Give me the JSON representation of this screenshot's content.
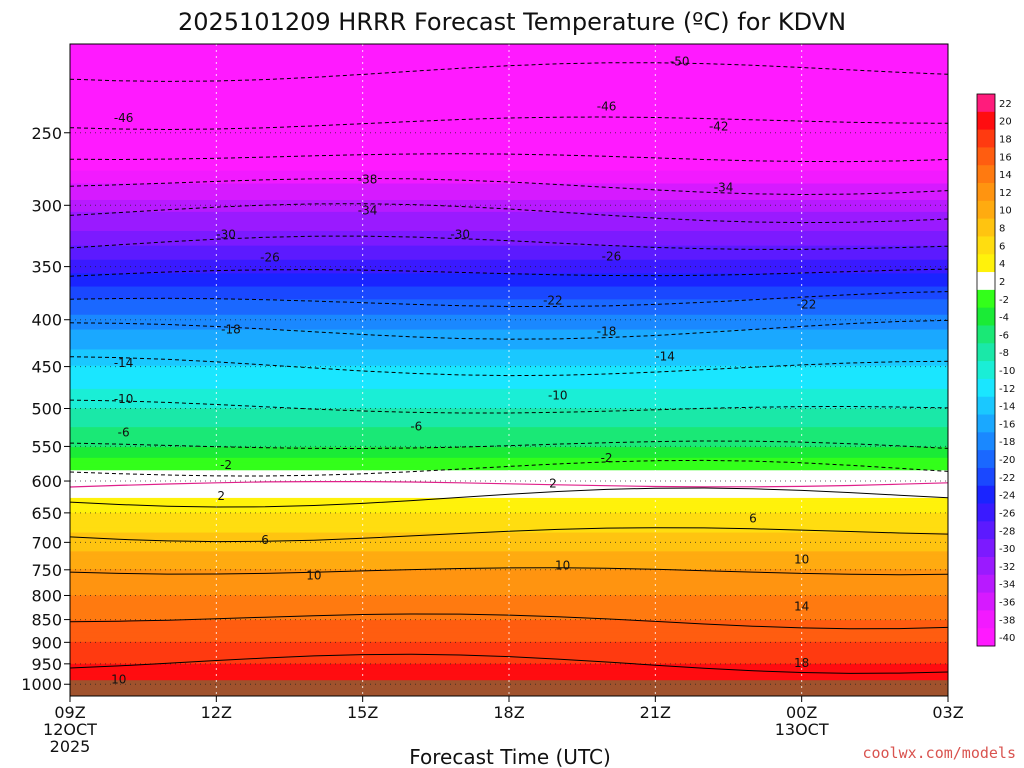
{
  "chart_data": {
    "type": "heatmap",
    "title": "2025101209 HRRR Forecast Temperature (ºC) for KDVN",
    "xlabel": "Forecast Time (UTC)",
    "ylabel": "",
    "x_ticks": [
      {
        "hour": 0,
        "lines": [
          "09Z",
          "12OCT",
          "2025"
        ]
      },
      {
        "hour": 3,
        "lines": [
          "12Z"
        ]
      },
      {
        "hour": 6,
        "lines": [
          "15Z"
        ]
      },
      {
        "hour": 9,
        "lines": [
          "18Z"
        ]
      },
      {
        "hour": 12,
        "lines": [
          "21Z"
        ]
      },
      {
        "hour": 15,
        "lines": [
          "00Z",
          "13OCT"
        ]
      },
      {
        "hour": 18,
        "lines": [
          "03Z"
        ]
      }
    ],
    "y_ticks": [
      250,
      300,
      350,
      400,
      450,
      500,
      550,
      600,
      650,
      700,
      750,
      800,
      850,
      900,
      950,
      1000
    ],
    "y_range_hpa": [
      200,
      1030
    ],
    "surface_pressure_hpa": 990,
    "colorbar": {
      "labels": [
        "22",
        "20",
        "18",
        "16",
        "14",
        "12",
        "10",
        "8",
        "6",
        "4",
        "2",
        "-2",
        "-4",
        "-6",
        "-8",
        "-10",
        "-12",
        "-14",
        "-16",
        "-18",
        "-20",
        "-22",
        "-24",
        "-26",
        "-28",
        "-30",
        "-32",
        "-34",
        "-36",
        "-38",
        "-40"
      ],
      "colors": [
        "#ff1c7c",
        "#ff0d10",
        "#ff3a10",
        "#ff5d10",
        "#ff7a10",
        "#ff9410",
        "#ffab10",
        "#ffc410",
        "#ffdd10",
        "#fff20b",
        "#ffffff",
        "#33ff1a",
        "#1aeb36",
        "#1ae876",
        "#1ae8a8",
        "#1aeed6",
        "#1ae6ff",
        "#1ac8ff",
        "#1aa8ff",
        "#1a88ff",
        "#1a68ff",
        "#1a48ff",
        "#1a24ff",
        "#3a1aff",
        "#5c1aff",
        "#7c1aff",
        "#9a1aff",
        "#b81aff",
        "#d61aff",
        "#f21aff",
        "#ff1aff"
      ]
    },
    "temperature_profile": {
      "pressure_hpa": [
        200,
        250,
        300,
        350,
        400,
        450,
        500,
        550,
        600,
        650,
        700,
        750,
        800,
        850,
        900,
        950,
        985
      ],
      "temperature_c": [
        -52,
        -45,
        -35,
        -27,
        -19,
        -14,
        -10,
        -6,
        0,
        4,
        7,
        10,
        12,
        14,
        16,
        18,
        19
      ]
    },
    "contour_labels": [
      {
        "text": "-50",
        "hour": 12.5,
        "p": 209
      },
      {
        "text": "-46",
        "hour": 1.1,
        "p": 241
      },
      {
        "text": "-46",
        "hour": 11.0,
        "p": 234
      },
      {
        "text": "-42",
        "hour": 13.3,
        "p": 246
      },
      {
        "text": "-38",
        "hour": 6.1,
        "p": 281
      },
      {
        "text": "-34",
        "hour": 6.1,
        "p": 304
      },
      {
        "text": "-34",
        "hour": 13.4,
        "p": 287
      },
      {
        "text": "-30",
        "hour": 3.2,
        "p": 323
      },
      {
        "text": "-30",
        "hour": 8.0,
        "p": 323
      },
      {
        "text": "-26",
        "hour": 4.1,
        "p": 342
      },
      {
        "text": "-26",
        "hour": 11.1,
        "p": 341
      },
      {
        "text": "-22",
        "hour": 9.9,
        "p": 381
      },
      {
        "text": "-22",
        "hour": 15.1,
        "p": 385
      },
      {
        "text": "-18",
        "hour": 3.3,
        "p": 410
      },
      {
        "text": "-18",
        "hour": 11.0,
        "p": 412
      },
      {
        "text": "-14",
        "hour": 1.1,
        "p": 446
      },
      {
        "text": "-14",
        "hour": 12.2,
        "p": 439
      },
      {
        "text": "-10",
        "hour": 1.1,
        "p": 488
      },
      {
        "text": "-10",
        "hour": 10.0,
        "p": 484
      },
      {
        "text": "-6",
        "hour": 1.1,
        "p": 531
      },
      {
        "text": "-6",
        "hour": 7.1,
        "p": 523
      },
      {
        "text": "-2",
        "hour": 3.2,
        "p": 576
      },
      {
        "text": "-2",
        "hour": 11.0,
        "p": 566
      },
      {
        "text": "2",
        "hour": 3.1,
        "p": 623
      },
      {
        "text": "2",
        "hour": 9.9,
        "p": 604
      },
      {
        "text": "6",
        "hour": 4.0,
        "p": 696
      },
      {
        "text": "6",
        "hour": 14.0,
        "p": 659
      },
      {
        "text": "10",
        "hour": 5.0,
        "p": 761
      },
      {
        "text": "10",
        "hour": 10.1,
        "p": 742
      },
      {
        "text": "10",
        "hour": 15.0,
        "p": 731
      },
      {
        "text": "14",
        "hour": 15.0,
        "p": 823
      },
      {
        "text": "18",
        "hour": 15.0,
        "p": 948
      },
      {
        "text": "10",
        "hour": 1.0,
        "p": 988
      }
    ],
    "credit": "coolwx.com/models"
  }
}
